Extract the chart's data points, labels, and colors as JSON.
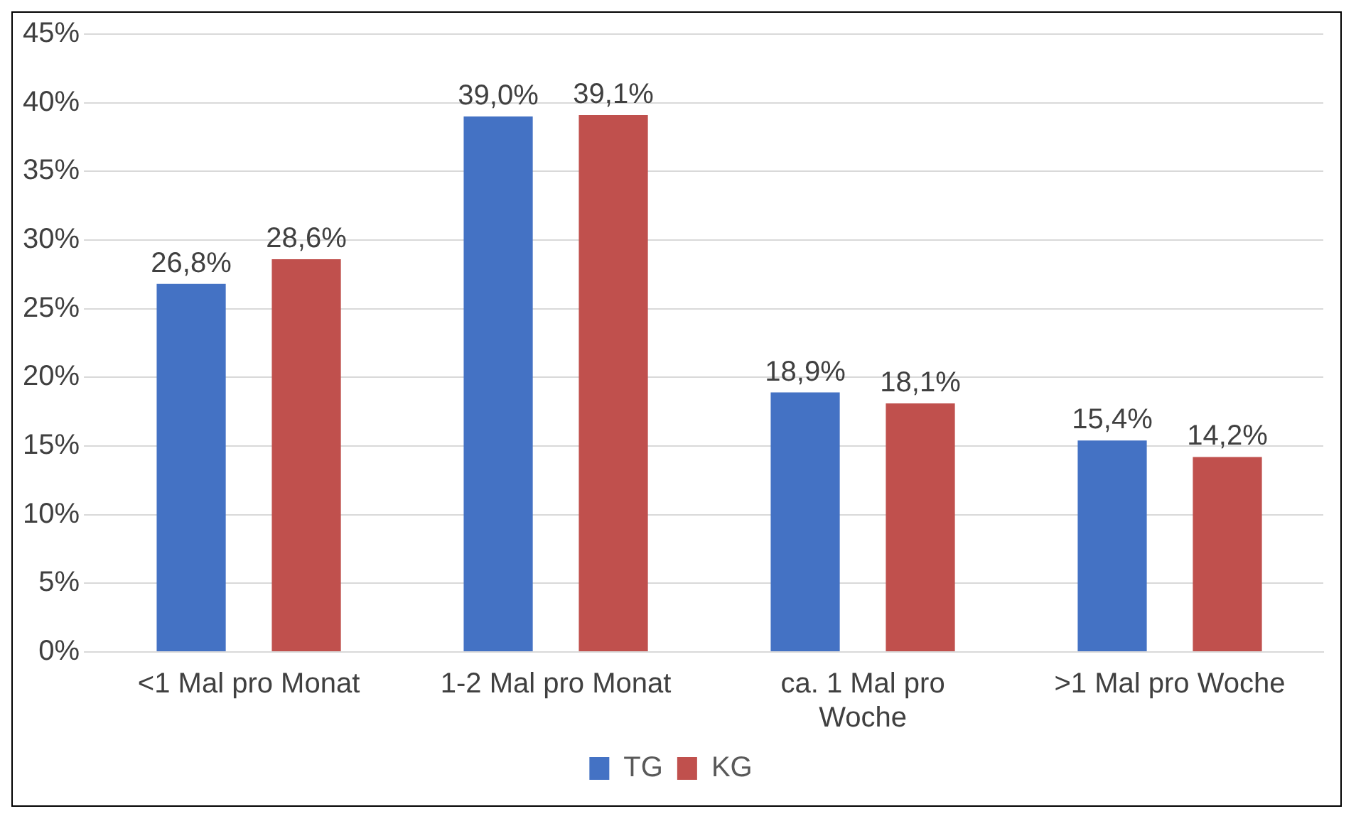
{
  "chart_data": {
    "type": "bar",
    "categories": [
      "<1 Mal pro Monat",
      "1-2 Mal pro Monat",
      "ca. 1 Mal pro Woche",
      ">1 Mal pro Woche"
    ],
    "series": [
      {
        "name": "TG",
        "color": "#4472c4",
        "values": [
          26.8,
          39.0,
          18.9,
          15.4
        ],
        "value_labels": [
          "26,8%",
          "39,0%",
          "18,9%",
          "15,4%"
        ]
      },
      {
        "name": "KG",
        "color": "#c0504d",
        "values": [
          28.6,
          39.1,
          18.1,
          14.2
        ],
        "value_labels": [
          "28,6%",
          "39,1%",
          "18,1%",
          "14,2%"
        ]
      }
    ],
    "ylim": [
      0,
      45
    ],
    "yticks": [
      {
        "value": 0,
        "label": "0%"
      },
      {
        "value": 5,
        "label": "5%"
      },
      {
        "value": 10,
        "label": "10%"
      },
      {
        "value": 15,
        "label": "15%"
      },
      {
        "value": 20,
        "label": "20%"
      },
      {
        "value": 25,
        "label": "25%"
      },
      {
        "value": 30,
        "label": "30%"
      },
      {
        "value": 35,
        "label": "35%"
      },
      {
        "value": 40,
        "label": "40%"
      },
      {
        "value": 45,
        "label": "45%"
      }
    ],
    "grid": "y",
    "legend": "bottom"
  }
}
